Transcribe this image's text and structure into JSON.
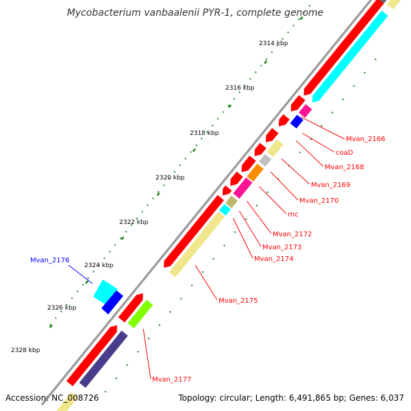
{
  "title": "Mycobacterium vanbaalenii PYR-1, complete genome",
  "footer": {
    "accession": "Accession: NC_008726",
    "summary": "Topology: circular; Length: 6,491,865 bp; Genes: 6,037"
  },
  "kbp_labels": [
    "2314 kbp",
    "2316 kbp",
    "2318 kbp",
    "2320 kbp",
    "2322 kbp",
    "2324 kbp",
    "2326 kbp",
    "2328 kbp"
  ],
  "gene_labels": [
    "Mvan_2166",
    "coaD",
    "Mvan_2168",
    "Mvan_2169",
    "Mvan_2170",
    "rnc",
    "Mvan_2172",
    "Mvan_2173",
    "Mvan_2174",
    "Mvan_2175",
    "Mvan_2176",
    "Mvan_2177"
  ],
  "colors": {
    "label_red": "#ff0000",
    "label_blue": "#0000ff",
    "backbone": "#999999",
    "tick": "#1a8a1a",
    "gene_red": "#ff0000",
    "cyan": "#00ffff",
    "khaki": "#f0e68c",
    "magenta": "#ff1493",
    "blue": "#0000ff",
    "grey": "#c0c0c0",
    "orange": "#ff8c00",
    "olive": "#bdb76b",
    "green": "#7fff00",
    "slate": "#483d8b",
    "dark_grey": "#696969"
  }
}
